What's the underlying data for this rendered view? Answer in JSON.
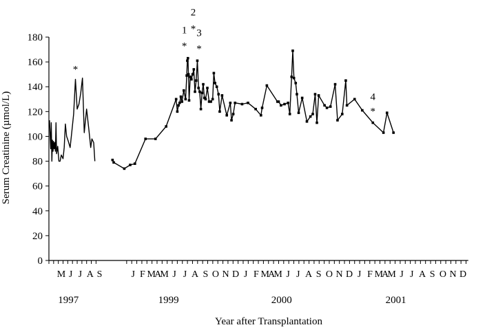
{
  "chart_data": {
    "type": "line",
    "title": "",
    "ylabel": "Serum Creatinine (µmol/L)",
    "xlabel": "Year after Transplantation",
    "ylim": [
      0,
      180
    ],
    "yticks": [
      0,
      20,
      40,
      60,
      80,
      100,
      120,
      140,
      160,
      180
    ],
    "grid": false,
    "legend": "none",
    "line_color": "#000000",
    "months": [
      {
        "label": "M",
        "x": 2.1
      },
      {
        "label": "J",
        "x": 3.7
      },
      {
        "label": "J",
        "x": 5.3
      },
      {
        "label": "A",
        "x": 7.0
      },
      {
        "label": "S",
        "x": 8.6
      },
      {
        "label": "J",
        "x": 14.3
      },
      {
        "label": "F",
        "x": 15.9
      },
      {
        "label": "M",
        "x": 17.4
      },
      {
        "label": "A",
        "x": 18.5
      },
      {
        "label": "M",
        "x": 19.6
      },
      {
        "label": "J",
        "x": 21.3
      },
      {
        "label": "J",
        "x": 23.1
      },
      {
        "label": "A",
        "x": 24.8
      },
      {
        "label": "S",
        "x": 26.6
      },
      {
        "label": "O",
        "x": 28.3
      },
      {
        "label": "N",
        "x": 30.0
      },
      {
        "label": "D",
        "x": 31.7
      },
      {
        "label": "J",
        "x": 33.4
      },
      {
        "label": "F",
        "x": 35.2
      },
      {
        "label": "M",
        "x": 36.7
      },
      {
        "label": "A",
        "x": 37.8
      },
      {
        "label": "M",
        "x": 38.9
      },
      {
        "label": "J",
        "x": 40.6
      },
      {
        "label": "J",
        "x": 42.3
      },
      {
        "label": "A",
        "x": 44.1
      },
      {
        "label": "S",
        "x": 45.8
      },
      {
        "label": "O",
        "x": 47.6
      },
      {
        "label": "N",
        "x": 49.3
      },
      {
        "label": "D",
        "x": 51.0
      },
      {
        "label": "J",
        "x": 52.7
      },
      {
        "label": "F",
        "x": 54.5
      },
      {
        "label": "M",
        "x": 56.0
      },
      {
        "label": "A",
        "x": 57.1
      },
      {
        "label": "M",
        "x": 58.2
      },
      {
        "label": "J",
        "x": 59.9
      },
      {
        "label": "J",
        "x": 61.6
      },
      {
        "label": "A",
        "x": 63.4
      },
      {
        "label": "S",
        "x": 65.1
      },
      {
        "label": "O",
        "x": 66.9
      },
      {
        "label": "N",
        "x": 68.6
      },
      {
        "label": "D",
        "x": 70.3
      }
    ],
    "years": [
      {
        "label": "1997",
        "x": 3.3
      },
      {
        "label": "1999",
        "x": 20.3
      },
      {
        "label": "2000",
        "x": 39.5
      },
      {
        "label": "2001",
        "x": 58.9
      }
    ],
    "series": [
      {
        "period": "1997",
        "markers": false,
        "points": [
          [
            0.1,
            113
          ],
          [
            0.3,
            90
          ],
          [
            0.4,
            111
          ],
          [
            0.5,
            80
          ],
          [
            0.6,
            97
          ],
          [
            0.7,
            88
          ],
          [
            0.8,
            96
          ],
          [
            0.9,
            90
          ],
          [
            1.0,
            95
          ],
          [
            1.1,
            88
          ],
          [
            1.2,
            111
          ],
          [
            1.3,
            86
          ],
          [
            1.5,
            92
          ],
          [
            1.7,
            80
          ],
          [
            1.9,
            80
          ],
          [
            2.1,
            85
          ],
          [
            2.4,
            82
          ],
          [
            2.6,
            91
          ],
          [
            2.8,
            110
          ],
          [
            3.0,
            100
          ],
          [
            3.3,
            96
          ],
          [
            3.6,
            91
          ],
          [
            3.9,
            104
          ],
          [
            4.2,
            118
          ],
          [
            4.5,
            146
          ],
          [
            4.8,
            122
          ],
          [
            5.1,
            126
          ],
          [
            5.4,
            135
          ],
          [
            5.7,
            147
          ],
          [
            6.0,
            103
          ],
          [
            6.4,
            122
          ],
          [
            6.8,
            105
          ],
          [
            7.1,
            91
          ],
          [
            7.3,
            98
          ],
          [
            7.6,
            95
          ],
          [
            7.8,
            80
          ]
        ]
      },
      {
        "period": "1999-2001",
        "markers": true,
        "points": [
          [
            10.8,
            81
          ],
          [
            11.0,
            79
          ],
          [
            12.8,
            74
          ],
          [
            13.8,
            77
          ],
          [
            14.6,
            78
          ],
          [
            16.4,
            98
          ],
          [
            18.1,
            98
          ],
          [
            19.9,
            108
          ],
          [
            21.6,
            130
          ],
          [
            21.8,
            120
          ],
          [
            22.0,
            125
          ],
          [
            22.2,
            127
          ],
          [
            22.4,
            132
          ],
          [
            22.6,
            128
          ],
          [
            22.9,
            137
          ],
          [
            23.2,
            130
          ],
          [
            23.4,
            149
          ],
          [
            23.5,
            161
          ],
          [
            23.6,
            163
          ],
          [
            23.7,
            150
          ],
          [
            23.8,
            129
          ],
          [
            24.0,
            148
          ],
          [
            24.2,
            146
          ],
          [
            24.4,
            150
          ],
          [
            24.6,
            154
          ],
          [
            24.8,
            136
          ],
          [
            25.0,
            145
          ],
          [
            25.2,
            161
          ],
          [
            25.4,
            139
          ],
          [
            25.6,
            136
          ],
          [
            25.8,
            122
          ],
          [
            26.0,
            135
          ],
          [
            26.2,
            142
          ],
          [
            26.4,
            131
          ],
          [
            26.6,
            130
          ],
          [
            26.9,
            139
          ],
          [
            27.2,
            128
          ],
          [
            27.5,
            128
          ],
          [
            27.8,
            130
          ],
          [
            28.0,
            151
          ],
          [
            28.2,
            143
          ],
          [
            28.5,
            140
          ],
          [
            28.8,
            134
          ],
          [
            29.0,
            120
          ],
          [
            29.4,
            133
          ],
          [
            30.2,
            117
          ],
          [
            30.8,
            127
          ],
          [
            31.0,
            113
          ],
          [
            31.3,
            118
          ],
          [
            31.6,
            127
          ],
          [
            32.8,
            126
          ],
          [
            33.8,
            127
          ],
          [
            35.1,
            122
          ],
          [
            36.0,
            117
          ],
          [
            36.2,
            123
          ],
          [
            37.0,
            141
          ],
          [
            38.8,
            128
          ],
          [
            39.0,
            128
          ],
          [
            39.4,
            125
          ],
          [
            40.0,
            126
          ],
          [
            40.6,
            127
          ],
          [
            40.9,
            118
          ],
          [
            41.2,
            148
          ],
          [
            41.4,
            169
          ],
          [
            41.6,
            147
          ],
          [
            41.9,
            143
          ],
          [
            42.1,
            134
          ],
          [
            42.4,
            119
          ],
          [
            43.0,
            131
          ],
          [
            43.8,
            112
          ],
          [
            44.4,
            116
          ],
          [
            44.8,
            118
          ],
          [
            45.2,
            134
          ],
          [
            45.5,
            111
          ],
          [
            45.8,
            133
          ],
          [
            46.8,
            125
          ],
          [
            47.2,
            123
          ],
          [
            47.8,
            124
          ],
          [
            48.6,
            142
          ],
          [
            49.0,
            113
          ],
          [
            49.8,
            118
          ],
          [
            50.4,
            145
          ],
          [
            50.6,
            125
          ],
          [
            51.9,
            130
          ],
          [
            53.2,
            121
          ],
          [
            55.0,
            111
          ],
          [
            56.8,
            103
          ],
          [
            57.4,
            119
          ],
          [
            58.5,
            103
          ]
        ]
      }
    ],
    "annotations": [
      {
        "label": "1",
        "x": 23.0,
        "y": 163
      },
      {
        "label": "2",
        "x": 24.5,
        "y": 163
      },
      {
        "label": "3",
        "x": 25.5,
        "y": 161
      },
      {
        "label": "4",
        "x": 55.0,
        "y": 111
      }
    ],
    "marker_symbol": "*",
    "extra_markers": [
      {
        "x": 4.5,
        "y": 146
      }
    ]
  }
}
